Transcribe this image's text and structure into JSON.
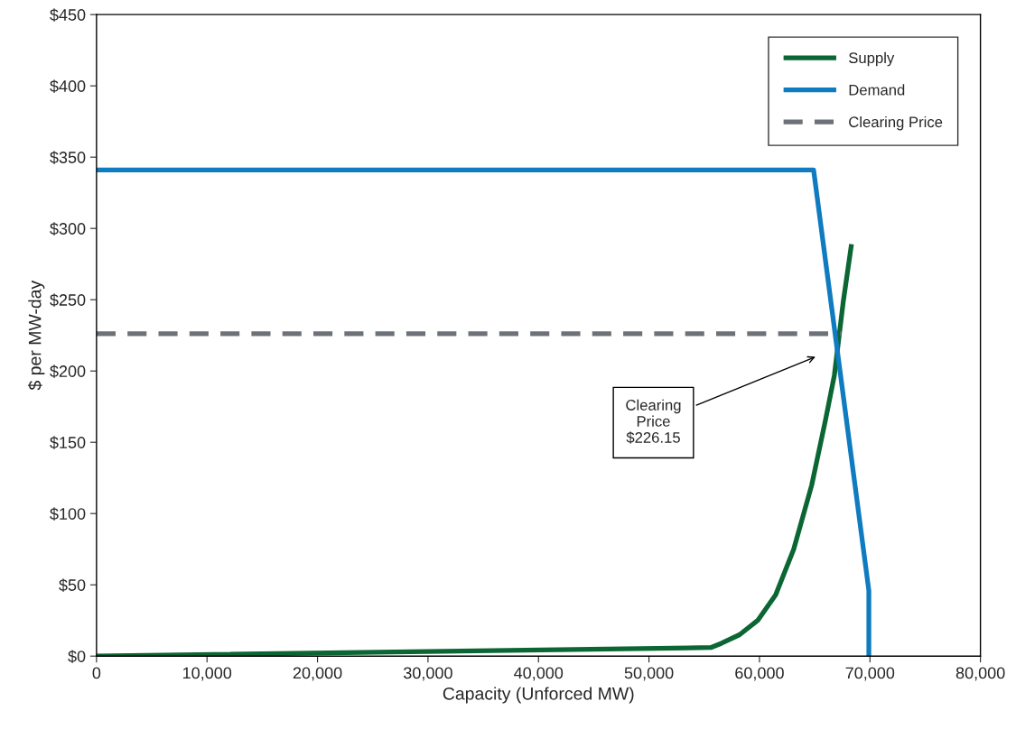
{
  "chart_data": {
    "type": "line",
    "xlabel": "Capacity (Unforced MW)",
    "ylabel": "$ per MW-day",
    "series": [
      {
        "name": "Supply",
        "color": "#0b6633",
        "x": [
          0,
          55600,
          56570,
          58200,
          59840,
          61470,
          63100,
          64730,
          65960,
          66780,
          67590,
          68330
        ],
        "values": [
          0,
          6,
          9,
          15,
          25,
          43,
          75,
          120,
          165,
          197,
          249,
          289
        ]
      },
      {
        "name": "Demand",
        "color": "#0f7bc0",
        "x": [
          0,
          64900,
          69900,
          69900
        ],
        "values": [
          341,
          341,
          46,
          0
        ]
      },
      {
        "name": "Clearing Price",
        "color": "#6d7178",
        "line_style": "dashed",
        "x": [
          0,
          67400
        ],
        "values": [
          226.15,
          226.15
        ]
      }
    ],
    "xlim": [
      0,
      80000
    ],
    "xticks": [
      0,
      {
        "value": 10000,
        "label": "10,000"
      },
      {
        "value": 20000,
        "label": "20,000"
      },
      {
        "value": 30000,
        "label": "30,000"
      },
      {
        "value": 40000,
        "label": "40,000"
      },
      {
        "value": 50000,
        "label": "50,000"
      },
      {
        "value": 60000,
        "label": "60,000"
      },
      {
        "value": 70000,
        "label": "70,000"
      },
      {
        "value": 80000,
        "label": "80,000"
      }
    ],
    "ylim": [
      0,
      450
    ],
    "yticks": [
      {
        "value": 0,
        "label": "$0"
      },
      {
        "value": 50,
        "label": "$50"
      },
      {
        "value": 100,
        "label": "$100"
      },
      {
        "value": 150,
        "label": "$150"
      },
      {
        "value": 200,
        "label": "$200"
      },
      {
        "value": 250,
        "label": "$250"
      },
      {
        "value": 300,
        "label": "$300"
      },
      {
        "value": 350,
        "label": "$350"
      },
      {
        "value": 400,
        "label": "$400"
      },
      {
        "value": 450,
        "label": "$450"
      }
    ],
    "annotations": [
      "Clearing\nPrice\n$226.15"
    ],
    "grid": false,
    "legend": "top right"
  }
}
